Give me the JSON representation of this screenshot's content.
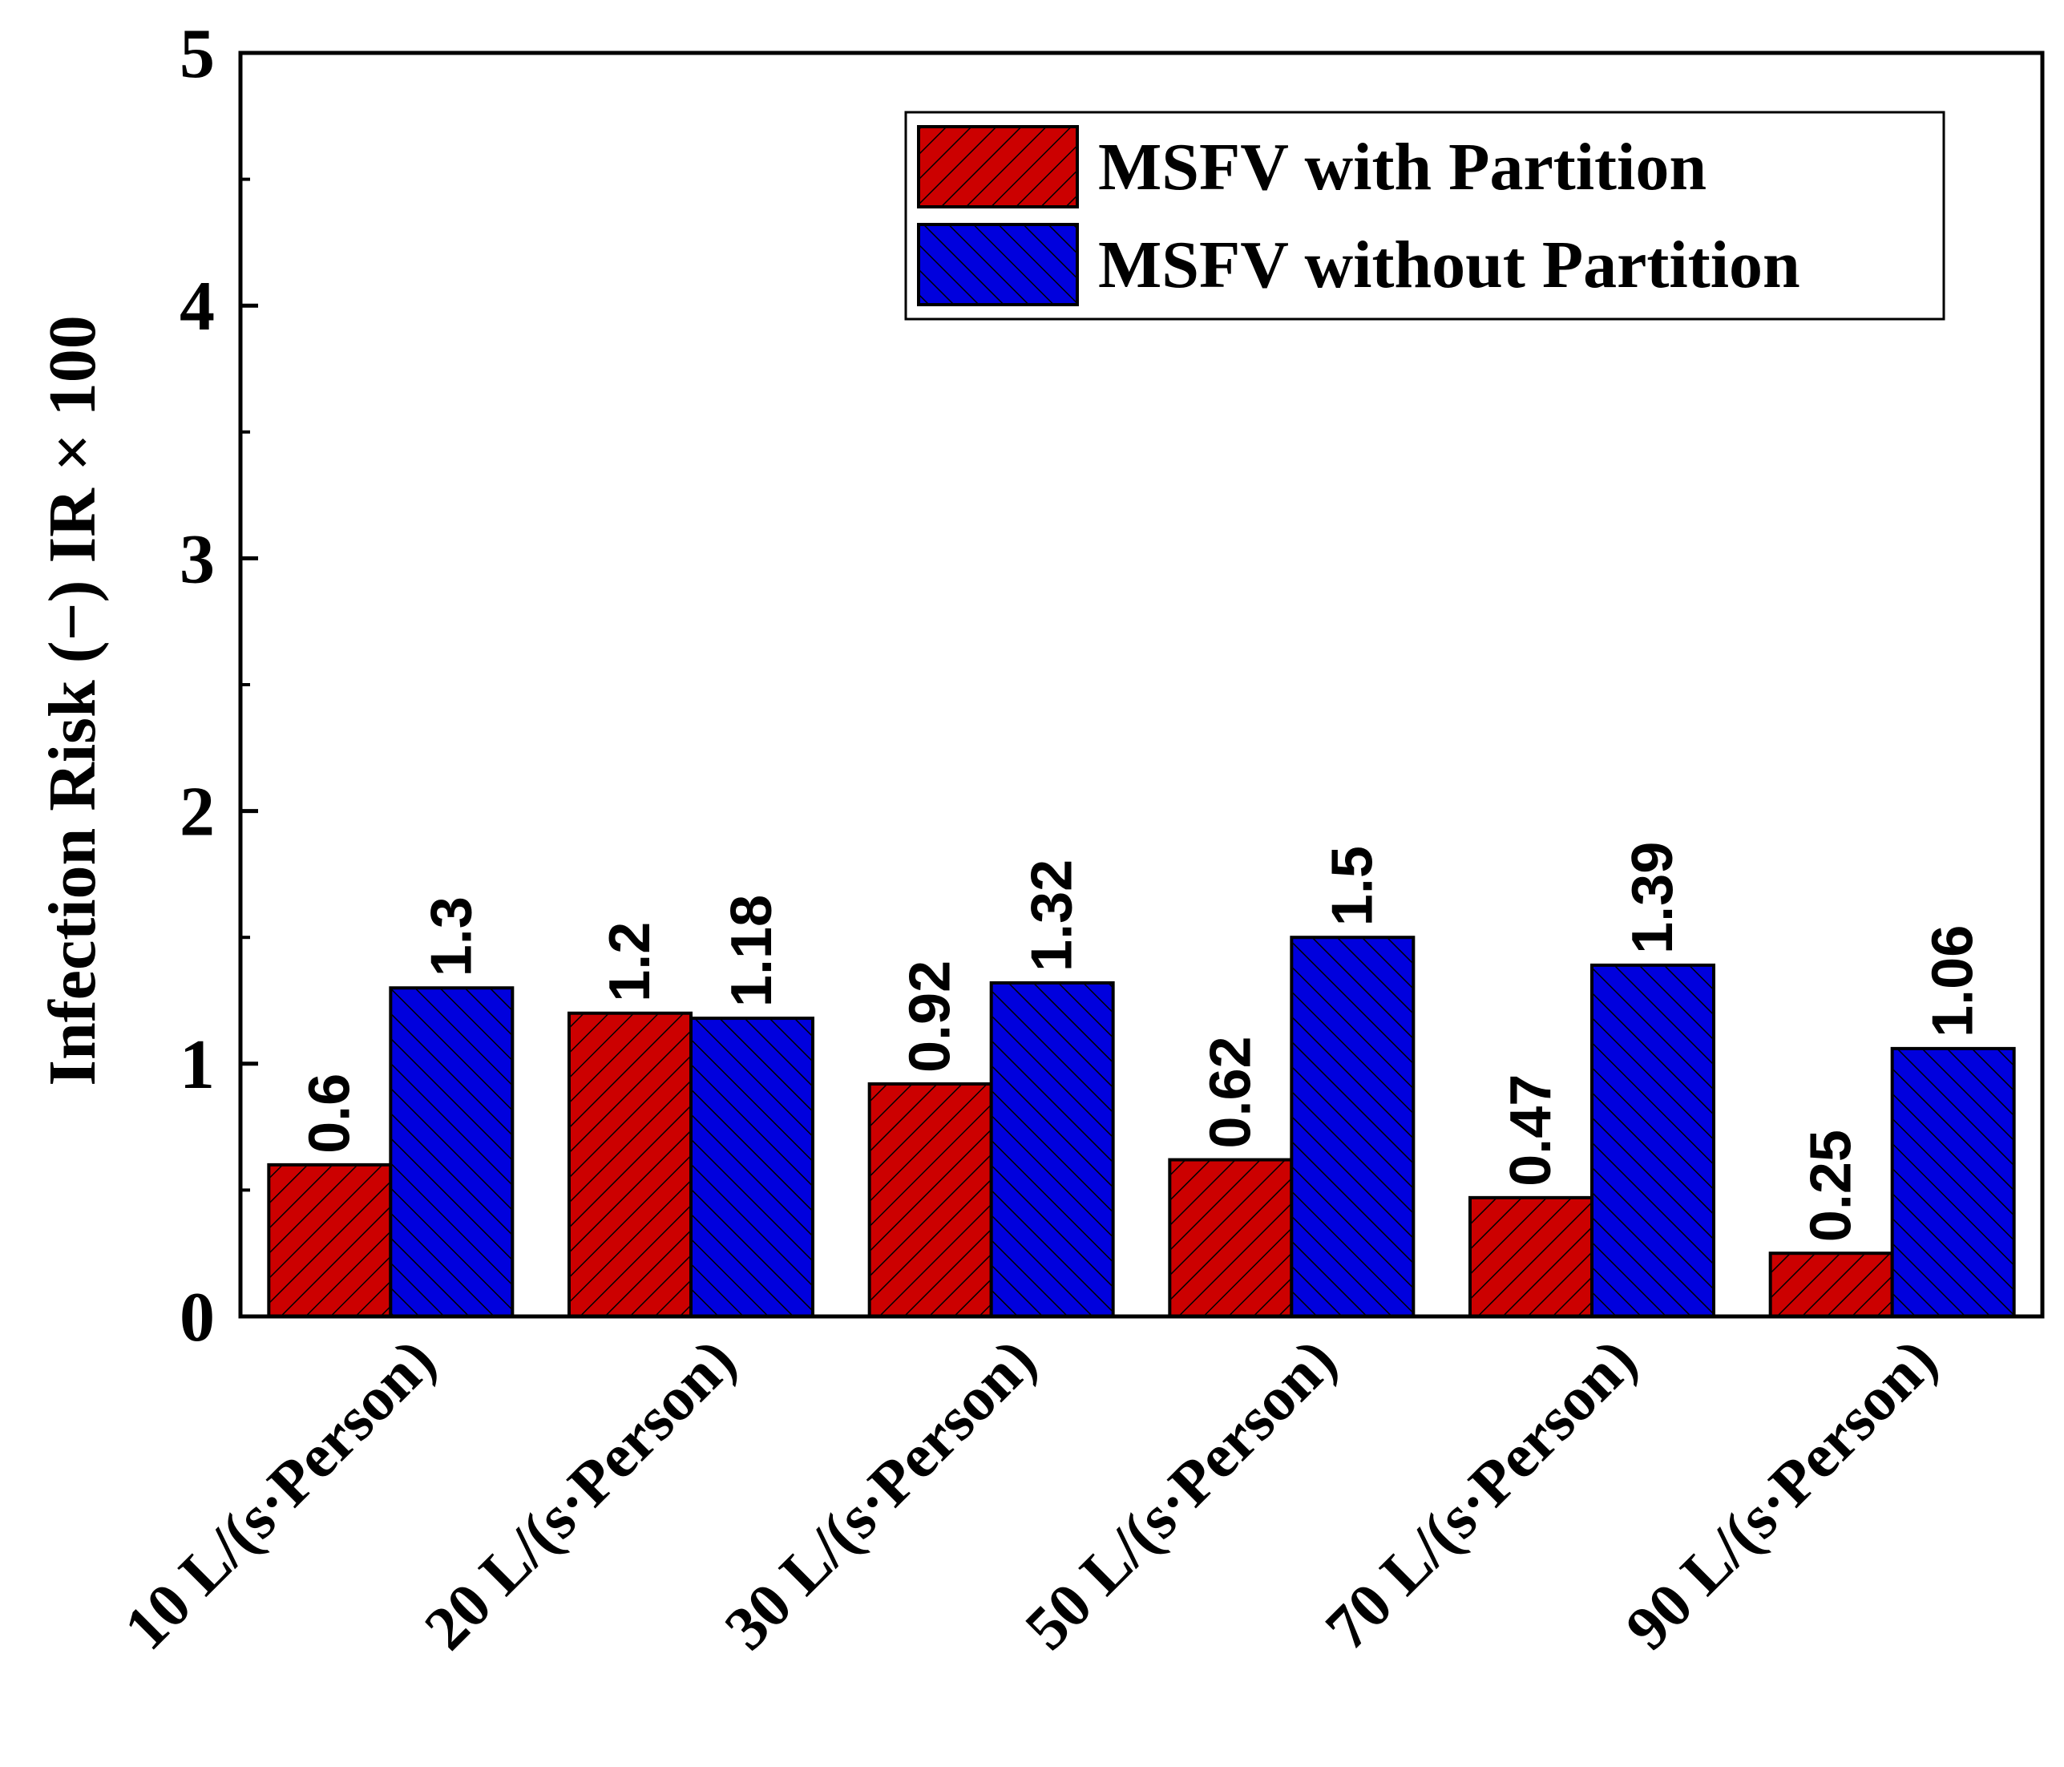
{
  "chart_data": {
    "type": "bar",
    "title": "",
    "xlabel": "",
    "ylabel": "Infection Risk (−) IR × 100",
    "ylim": [
      0,
      5
    ],
    "yticks": [
      "0",
      "1",
      "2",
      "3",
      "4",
      "5"
    ],
    "grid": false,
    "legend_position": "top-right",
    "categories": [
      "10 L/(s·Person)",
      "20 L/(s·Person)",
      "30 L/(s·Person)",
      "50 L/(s·Person)",
      "70 L/(s·Person)",
      "90 L/(s·Person)"
    ],
    "series": [
      {
        "name": "MSFV with Partition",
        "color": "#cc0000",
        "hatch": "forward-diagonal",
        "values": [
          0.6,
          1.2,
          0.92,
          0.62,
          0.47,
          0.25
        ],
        "labels": [
          "0.6",
          "1.2",
          "0.92",
          "0.62",
          "0.47",
          "0.25"
        ]
      },
      {
        "name": "MSFV without Partition",
        "color": "#0000dd",
        "hatch": "back-diagonal",
        "values": [
          1.3,
          1.18,
          1.32,
          1.5,
          1.39,
          1.06
        ],
        "labels": [
          "1.3",
          "1.18",
          "1.32",
          "1.5",
          "1.39",
          "1.06"
        ]
      }
    ]
  }
}
